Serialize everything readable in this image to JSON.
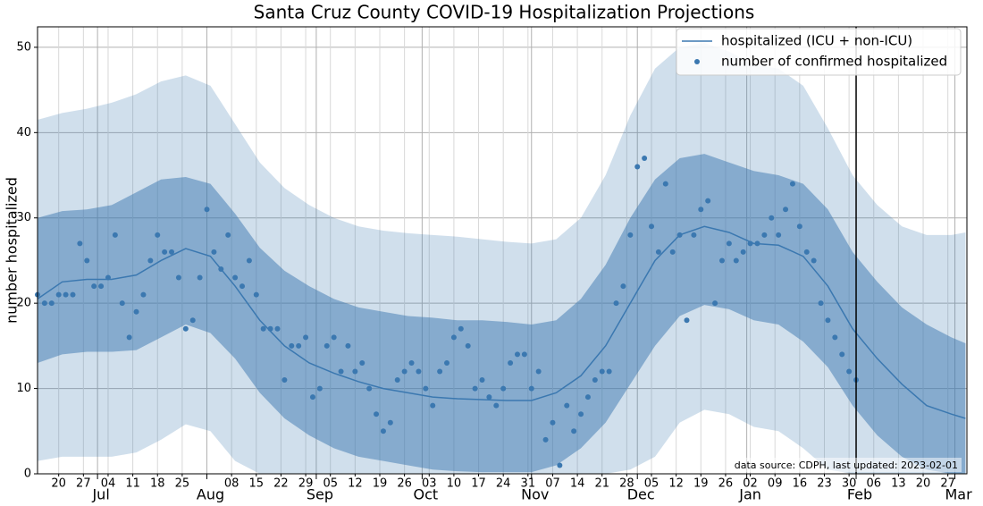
{
  "chart_data": {
    "type": "line",
    "title": "Santa Cruz County COVID-19 Hospitalization Projections",
    "ylabel": "number hospitalized",
    "annotation": "data source: CDPH, last updated: 2023-02-01",
    "legend": "upper right",
    "grid": true,
    "x": [
      0,
      7,
      14,
      21,
      28,
      35,
      42,
      49,
      56,
      63,
      70,
      77,
      84,
      91,
      98,
      105,
      112,
      119,
      126,
      133,
      140,
      147,
      154,
      161,
      168,
      175,
      182,
      189,
      196,
      203,
      210,
      217,
      224,
      231,
      238,
      245,
      252,
      259,
      263
    ],
    "series": [
      {
        "name": "hospitalized (ICU + non-ICU)",
        "color": "#3b78b0",
        "values": [
          20.5,
          22.5,
          22.8,
          22.8,
          23.3,
          25,
          26.4,
          25.5,
          22,
          18,
          15,
          13,
          11.8,
          10.8,
          10,
          9.5,
          9,
          8.8,
          8.7,
          8.6,
          8.6,
          9.5,
          11.5,
          15,
          20,
          25,
          28,
          29,
          28.3,
          27,
          26.8,
          25.5,
          22,
          17,
          13.5,
          10.5,
          8,
          7,
          6.5
        ]
      }
    ],
    "bands": [
      {
        "color": "#3b78b0",
        "alpha": 0.24,
        "upper": [
          41.5,
          42.3,
          42.8,
          43.5,
          44.5,
          46,
          46.7,
          45.5,
          41,
          36.5,
          33.5,
          31.5,
          30,
          29,
          28.5,
          28.2,
          28,
          27.8,
          27.5,
          27.2,
          27,
          27.5,
          30,
          35,
          42,
          47.5,
          50,
          50.5,
          49.5,
          48,
          47.5,
          45.5,
          40.5,
          35,
          31.5,
          29,
          28,
          28,
          28.3
        ],
        "lower": [
          1.5,
          2,
          2,
          2,
          2.5,
          4,
          5.8,
          5,
          1.5,
          0,
          0,
          0,
          0,
          0,
          0,
          0,
          0,
          0,
          0,
          0,
          0,
          0,
          0,
          0,
          0.5,
          2,
          6,
          7.5,
          7,
          5.5,
          5,
          3,
          0.5,
          0,
          0,
          0,
          0,
          0,
          0
        ]
      },
      {
        "color": "#3b78b0",
        "alpha": 0.5,
        "upper": [
          30,
          30.8,
          31,
          31.5,
          33,
          34.5,
          34.8,
          34,
          30.5,
          26.5,
          23.8,
          22,
          20.5,
          19.5,
          19,
          18.5,
          18.3,
          18,
          18,
          17.8,
          17.5,
          18,
          20.5,
          24.5,
          30,
          34.5,
          37,
          37.5,
          36.5,
          35.5,
          35,
          34,
          31,
          26,
          22.5,
          19.5,
          17.5,
          16,
          15.3
        ],
        "lower": [
          13,
          14,
          14.3,
          14.3,
          14.5,
          16,
          17.5,
          16.5,
          13.5,
          9.5,
          6.5,
          4.5,
          3,
          2,
          1.5,
          1,
          0.5,
          0.3,
          0.2,
          0.2,
          0.2,
          1,
          3,
          6,
          10.5,
          15,
          18.5,
          19.8,
          19.3,
          18,
          17.5,
          15.5,
          12.5,
          8,
          4.5,
          2,
          0.5,
          0,
          0
        ]
      }
    ],
    "scatter": {
      "name": "number of confirmed hospitalized",
      "color": "#3b78b0",
      "x": [
        0,
        2,
        4,
        6,
        8,
        10,
        12,
        14,
        16,
        18,
        20,
        22,
        24,
        26,
        28,
        30,
        32,
        34,
        36,
        38,
        40,
        42,
        44,
        46,
        48,
        50,
        52,
        54,
        56,
        58,
        60,
        62,
        64,
        66,
        68,
        70,
        72,
        74,
        76,
        78,
        80,
        82,
        84,
        86,
        88,
        90,
        92,
        94,
        96,
        98,
        100,
        102,
        104,
        106,
        108,
        110,
        112,
        114,
        116,
        118,
        120,
        122,
        124,
        126,
        128,
        130,
        132,
        134,
        136,
        138,
        140,
        142,
        144,
        146,
        148,
        150,
        152,
        154,
        156,
        158,
        160,
        162,
        164,
        166,
        168,
        170,
        172,
        174,
        176,
        178,
        180,
        182,
        184,
        186,
        188,
        190,
        192,
        194,
        196,
        198,
        200,
        202,
        204,
        206,
        208,
        210,
        212,
        214,
        216,
        218,
        220,
        222,
        224,
        226,
        228,
        230,
        232
      ],
      "values": [
        21,
        20,
        20,
        21,
        21,
        21,
        27,
        25,
        22,
        22,
        23,
        28,
        20,
        16,
        19,
        21,
        25,
        28,
        26,
        26,
        23,
        17,
        18,
        23,
        31,
        26,
        24,
        28,
        23,
        22,
        25,
        21,
        17,
        17,
        17,
        11,
        15,
        15,
        16,
        9,
        10,
        15,
        16,
        12,
        15,
        12,
        13,
        10,
        7,
        5,
        6,
        11,
        12,
        13,
        12,
        10,
        8,
        12,
        13,
        16,
        17,
        15,
        10,
        11,
        9,
        8,
        10,
        13,
        14,
        14,
        10,
        12,
        4,
        6,
        1,
        8,
        5,
        7,
        9,
        11,
        12,
        12,
        20,
        22,
        28,
        36,
        37,
        29,
        26,
        34,
        26,
        28,
        18,
        28,
        31,
        32,
        20,
        25,
        27,
        25,
        26,
        27,
        27,
        28,
        30,
        28,
        31,
        34,
        29,
        26,
        25,
        20,
        18,
        16,
        14,
        12,
        11
      ]
    },
    "xlim": [
      0,
      263.4
    ],
    "ylim": [
      0,
      52.4
    ],
    "yticks": [
      0,
      10,
      20,
      30,
      40,
      50
    ],
    "vline": 232,
    "xticks": [
      {
        "value": 6,
        "label": "20"
      },
      {
        "value": 13,
        "label": "27"
      },
      {
        "value": 20,
        "label": "04"
      },
      {
        "value": 27,
        "label": "11"
      },
      {
        "value": 34,
        "label": "18"
      },
      {
        "value": 41,
        "label": "25"
      },
      {
        "value": 55,
        "label": "08"
      },
      {
        "value": 62,
        "label": "15"
      },
      {
        "value": 69,
        "label": "22"
      },
      {
        "value": 76,
        "label": "29"
      },
      {
        "value": 83,
        "label": "05"
      },
      {
        "value": 90,
        "label": "12"
      },
      {
        "value": 97,
        "label": "19"
      },
      {
        "value": 104,
        "label": "26"
      },
      {
        "value": 111,
        "label": "03"
      },
      {
        "value": 118,
        "label": "10"
      },
      {
        "value": 125,
        "label": "17"
      },
      {
        "value": 132,
        "label": "24"
      },
      {
        "value": 139,
        "label": "31"
      },
      {
        "value": 146,
        "label": "07"
      },
      {
        "value": 153,
        "label": "14"
      },
      {
        "value": 160,
        "label": "21"
      },
      {
        "value": 167,
        "label": "28"
      },
      {
        "value": 174,
        "label": "05"
      },
      {
        "value": 181,
        "label": "12"
      },
      {
        "value": 188,
        "label": "19"
      },
      {
        "value": 195,
        "label": "26"
      },
      {
        "value": 202,
        "label": "02"
      },
      {
        "value": 209,
        "label": "09"
      },
      {
        "value": 216,
        "label": "16"
      },
      {
        "value": 223,
        "label": "23"
      },
      {
        "value": 230,
        "label": "30"
      },
      {
        "value": 237,
        "label": "06"
      },
      {
        "value": 244,
        "label": "13"
      },
      {
        "value": 251,
        "label": "20"
      },
      {
        "value": 258,
        "label": "27"
      }
    ],
    "month_ticks": [
      {
        "value": 17,
        "label": "Jul"
      },
      {
        "value": 48,
        "label": "Aug"
      },
      {
        "value": 79,
        "label": "Sep"
      },
      {
        "value": 109,
        "label": "Oct"
      },
      {
        "value": 140,
        "label": "Nov"
      },
      {
        "value": 170,
        "label": "Dec"
      },
      {
        "value": 201,
        "label": "Jan"
      },
      {
        "value": 232,
        "label": "Feb"
      },
      {
        "value": 260,
        "label": "Mar"
      }
    ]
  }
}
